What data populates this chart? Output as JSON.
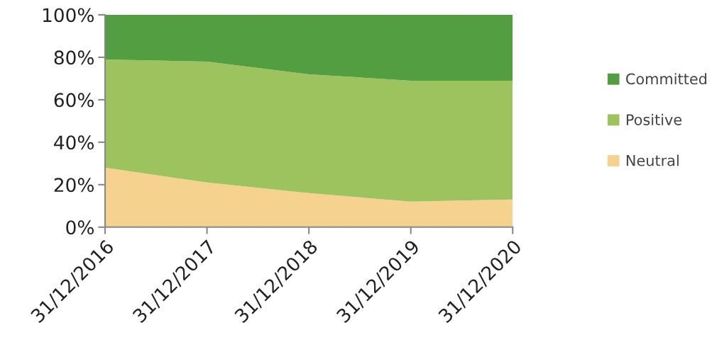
{
  "chart_data": {
    "type": "area",
    "stacked": true,
    "categories": [
      "31/12/2016",
      "31/12/2017",
      "31/12/2018",
      "31/12/2019",
      "31/12/2020"
    ],
    "series": [
      {
        "name": "Neutral",
        "color": "#f5d38f",
        "values": [
          28,
          21,
          16,
          12,
          13
        ]
      },
      {
        "name": "Positive",
        "color": "#9dc35f",
        "values": [
          51,
          57,
          56,
          57,
          56
        ]
      },
      {
        "name": "Committed",
        "color": "#529e40",
        "values": [
          21,
          22,
          28,
          31,
          31
        ]
      }
    ],
    "ylim": [
      0,
      100
    ],
    "yticks": [
      {
        "value": 0,
        "label": "0%"
      },
      {
        "value": 20,
        "label": "20%"
      },
      {
        "value": 40,
        "label": "40%"
      },
      {
        "value": 60,
        "label": "60%"
      },
      {
        "value": 80,
        "label": "80%"
      },
      {
        "value": 100,
        "label": "100%"
      }
    ],
    "grid": false,
    "legend": "right"
  }
}
